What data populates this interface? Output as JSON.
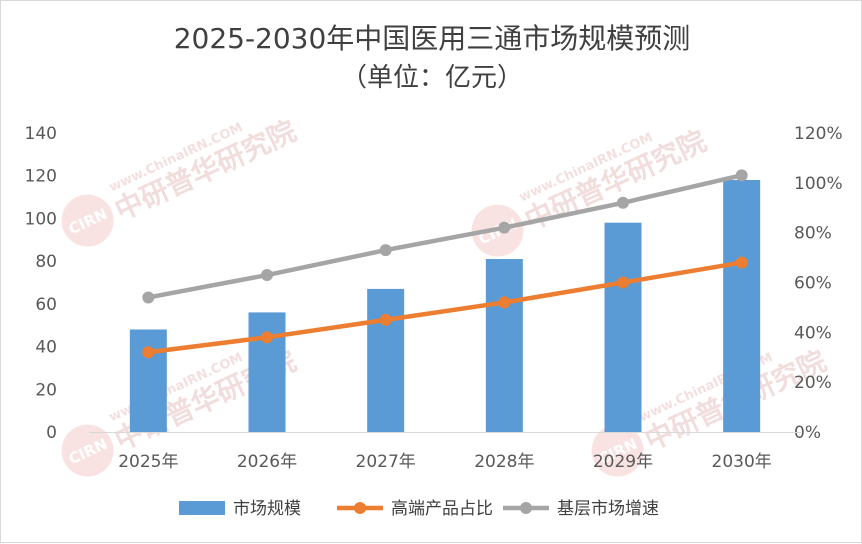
{
  "chart_data": {
    "type": "bar+line",
    "title": "2025-2030年中国医用三通市场规模预测",
    "subtitle": "（单位：亿元）",
    "categories": [
      "2025年",
      "2026年",
      "2027年",
      "2028年",
      "2029年",
      "2030年"
    ],
    "left_axis": {
      "min": 0,
      "max": 140,
      "step": 20,
      "tick_labels": [
        "0",
        "20",
        "40",
        "60",
        "80",
        "100",
        "120",
        "140"
      ]
    },
    "right_axis": {
      "min": 0,
      "max": 1.2,
      "step": 0.2,
      "tick_labels": [
        "0%",
        "20%",
        "40%",
        "60%",
        "80%",
        "100%",
        "120%"
      ]
    },
    "series": [
      {
        "name": "市场规模",
        "type": "bar",
        "axis": "left",
        "color": "#5b9bd5",
        "values": [
          48,
          56,
          67,
          81,
          98,
          118
        ]
      },
      {
        "name": "高端产品占比",
        "type": "line",
        "axis": "right",
        "color": "#ed7d31",
        "values": [
          0.32,
          0.38,
          0.45,
          0.52,
          0.6,
          0.68
        ]
      },
      {
        "name": "基层市场增速",
        "type": "line",
        "axis": "right",
        "color": "#a5a5a5",
        "values": [
          0.54,
          0.63,
          0.73,
          0.82,
          0.92,
          1.03
        ]
      }
    ],
    "grid": false,
    "legend": "bottom"
  },
  "watermark": {
    "text": "中研普华研究院",
    "url": "www.ChinaIRN.COM",
    "logo": "CIRN"
  }
}
